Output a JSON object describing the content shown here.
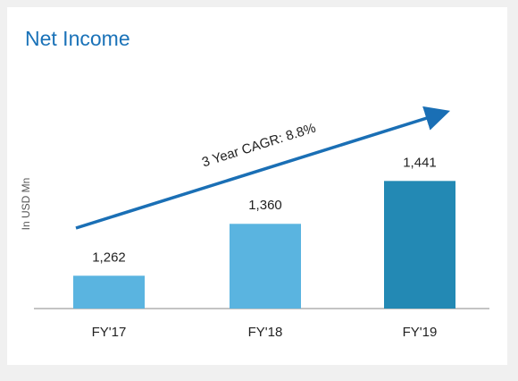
{
  "chart_data": {
    "type": "bar",
    "title": "Net Income",
    "y_label": "In USD Mn",
    "categories": [
      "FY'17",
      "FY'18",
      "FY'19"
    ],
    "values": [
      1262,
      1360,
      1441
    ],
    "value_labels": [
      "1,262",
      "1,360",
      "1,441"
    ],
    "colors": [
      "#5ab4e0",
      "#5ab4e0",
      "#2389b4"
    ],
    "ylim": [
      1200,
      1450
    ],
    "annotation": "3 Year CAGR: 8.8%"
  }
}
